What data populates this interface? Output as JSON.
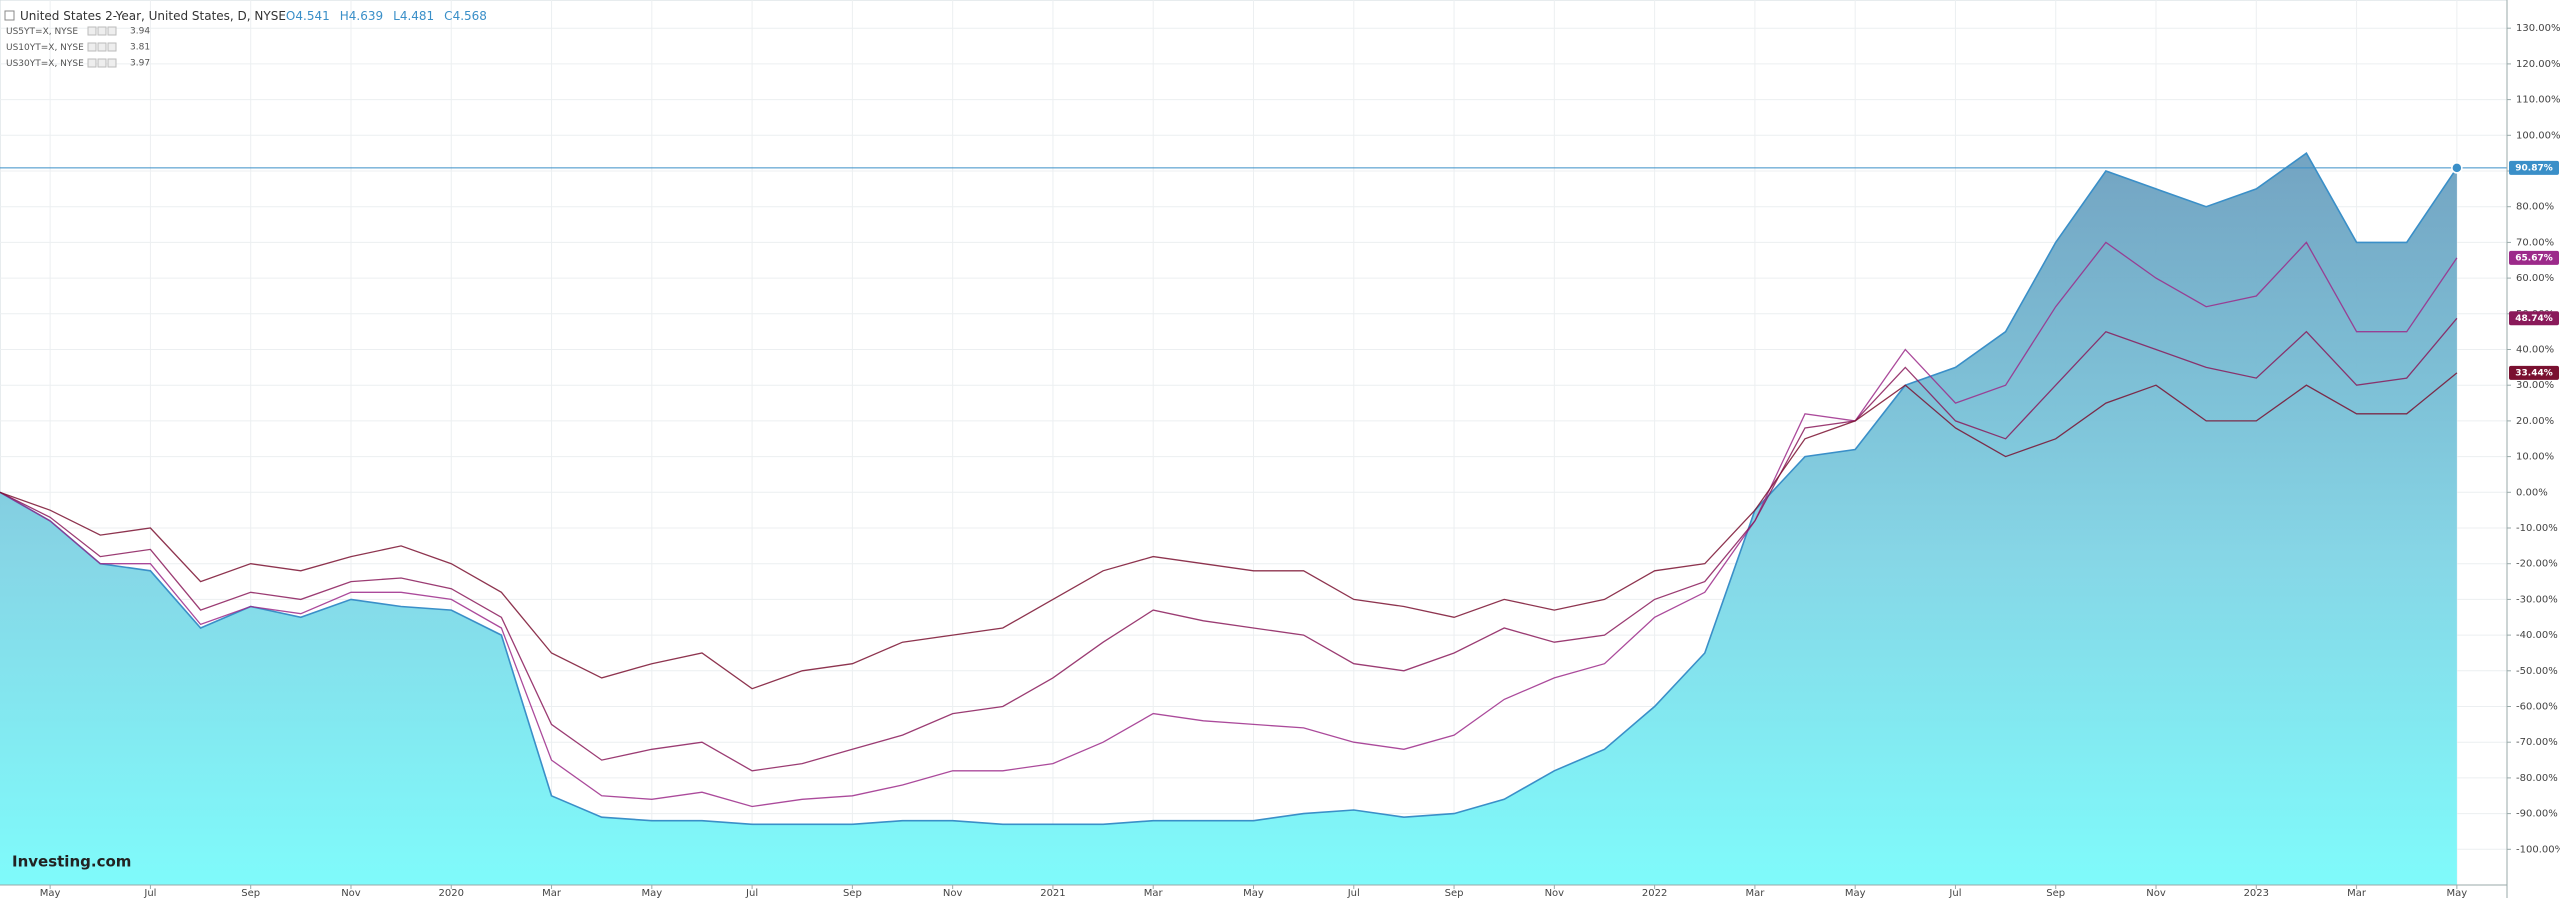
{
  "chart_data": {
    "type": "line",
    "x": [
      "2019-04",
      "2019-05",
      "2019-06",
      "2019-07",
      "2019-08",
      "2019-09",
      "2019-10",
      "2019-11",
      "2019-12",
      "2020-01",
      "2020-02",
      "2020-03",
      "2020-04",
      "2020-05",
      "2020-06",
      "2020-07",
      "2020-08",
      "2020-09",
      "2020-10",
      "2020-11",
      "2020-12",
      "2021-01",
      "2021-02",
      "2021-03",
      "2021-04",
      "2021-05",
      "2021-06",
      "2021-07",
      "2021-08",
      "2021-09",
      "2021-10",
      "2021-11",
      "2021-12",
      "2022-01",
      "2022-02",
      "2022-03",
      "2022-04",
      "2022-05",
      "2022-06",
      "2022-07",
      "2022-08",
      "2022-09",
      "2022-10",
      "2022-11",
      "2022-12",
      "2023-01",
      "2023-02",
      "2023-03",
      "2023-04",
      "2023-05"
    ],
    "series": [
      {
        "name": "United States 2-Year, United States, D, NYSE",
        "color": "#3a8fc8",
        "area": true,
        "ohlc": [
          {
            "name": "O",
            "value": 4.541
          },
          {
            "name": "H",
            "value": 4.639
          },
          {
            "name": "L",
            "value": 4.481
          },
          {
            "name": "C",
            "value": 4.568
          }
        ],
        "last_label": "90.87%",
        "values": [
          0,
          -8,
          -20,
          -22,
          -38,
          -32,
          -35,
          -30,
          -32,
          -33,
          -40,
          -85,
          -91,
          -92,
          -92,
          -93,
          -93,
          -93,
          -92,
          -92,
          -93,
          -93,
          -93,
          -92,
          -92,
          -92,
          -90,
          -89,
          -91,
          -90,
          -86,
          -78,
          -72,
          -60,
          -45,
          -5,
          10,
          12,
          30,
          35,
          45,
          70,
          90,
          85,
          80,
          85,
          95,
          70,
          70,
          90.87
        ]
      },
      {
        "name": "US5YT=X, NYSE",
        "color": "#9c2a8a",
        "legend_value": 3.94,
        "last_label": "65.67%",
        "values": [
          0,
          -8,
          -20,
          -20,
          -37,
          -32,
          -34,
          -28,
          -28,
          -30,
          -38,
          -75,
          -85,
          -86,
          -84,
          -88,
          -86,
          -85,
          -82,
          -78,
          -78,
          -76,
          -70,
          -62,
          -64,
          -65,
          -66,
          -70,
          -72,
          -68,
          -58,
          -52,
          -48,
          -35,
          -28,
          -8,
          22,
          20,
          40,
          25,
          30,
          52,
          70,
          60,
          52,
          55,
          70,
          45,
          45,
          65.67
        ]
      },
      {
        "name": "US10YT=X, NYSE",
        "color": "#8a1a5a",
        "legend_value": 3.81,
        "last_label": "48.74%",
        "values": [
          0,
          -7,
          -18,
          -16,
          -33,
          -28,
          -30,
          -25,
          -24,
          -27,
          -35,
          -65,
          -75,
          -72,
          -70,
          -78,
          -76,
          -72,
          -68,
          -62,
          -60,
          -52,
          -42,
          -33,
          -36,
          -38,
          -40,
          -48,
          -50,
          -45,
          -38,
          -42,
          -40,
          -30,
          -25,
          -8,
          18,
          20,
          35,
          20,
          15,
          30,
          45,
          40,
          35,
          32,
          45,
          30,
          32,
          48.74
        ]
      },
      {
        "name": "US30YT=X, NYSE",
        "color": "#7a1030",
        "legend_value": 3.97,
        "last_label": "33.44%",
        "values": [
          0,
          -5,
          -12,
          -10,
          -25,
          -20,
          -22,
          -18,
          -15,
          -20,
          -28,
          -45,
          -52,
          -48,
          -45,
          -55,
          -50,
          -48,
          -42,
          -40,
          -38,
          -30,
          -22,
          -18,
          -20,
          -22,
          -22,
          -30,
          -32,
          -35,
          -30,
          -33,
          -30,
          -22,
          -20,
          -5,
          15,
          20,
          30,
          18,
          10,
          15,
          25,
          30,
          20,
          20,
          30,
          22,
          22,
          33.44
        ]
      }
    ],
    "xlim": [
      "2019-04",
      "2023-06"
    ],
    "xticks": [
      {
        "value": "2019-05",
        "label": "May"
      },
      {
        "value": "2019-07",
        "label": "Jul"
      },
      {
        "value": "2019-09",
        "label": "Sep"
      },
      {
        "value": "2019-11",
        "label": "Nov"
      },
      {
        "value": "2020-01",
        "label": "2020"
      },
      {
        "value": "2020-03",
        "label": "Mar"
      },
      {
        "value": "2020-05",
        "label": "May"
      },
      {
        "value": "2020-07",
        "label": "Jul"
      },
      {
        "value": "2020-09",
        "label": "Sep"
      },
      {
        "value": "2020-11",
        "label": "Nov"
      },
      {
        "value": "2021-01",
        "label": "2021"
      },
      {
        "value": "2021-03",
        "label": "Mar"
      },
      {
        "value": "2021-05",
        "label": "May"
      },
      {
        "value": "2021-07",
        "label": "Jul"
      },
      {
        "value": "2021-09",
        "label": "Sep"
      },
      {
        "value": "2021-11",
        "label": "Nov"
      },
      {
        "value": "2022-01",
        "label": "2022"
      },
      {
        "value": "2022-03",
        "label": "Mar"
      },
      {
        "value": "2022-05",
        "label": "May"
      },
      {
        "value": "2022-07",
        "label": "Jul"
      },
      {
        "value": "2022-09",
        "label": "Sep"
      },
      {
        "value": "2022-11",
        "label": "Nov"
      },
      {
        "value": "2023-01",
        "label": "2023"
      },
      {
        "value": "2023-03",
        "label": "Mar"
      },
      {
        "value": "2023-05",
        "label": "May"
      }
    ],
    "ylim": [
      -110,
      137.9
    ],
    "yticks": [
      {
        "value": 130,
        "label": "130.00%"
      },
      {
        "value": 120,
        "label": "120.00%"
      },
      {
        "value": 110,
        "label": "110.00%"
      },
      {
        "value": 100,
        "label": "100.00%"
      },
      {
        "value": 90,
        "label": "90.00%"
      },
      {
        "value": 80,
        "label": "80.00%"
      },
      {
        "value": 70,
        "label": "70.00%"
      },
      {
        "value": 60,
        "label": "60.00%"
      },
      {
        "value": 50,
        "label": "50.00%"
      },
      {
        "value": 40,
        "label": "40.00%"
      },
      {
        "value": 30,
        "label": "30.00%"
      },
      {
        "value": 20,
        "label": "20.00%"
      },
      {
        "value": 10,
        "label": "10.00%"
      },
      {
        "value": 0,
        "label": "0.00%"
      },
      {
        "value": -10,
        "label": "-10.00%"
      },
      {
        "value": -20,
        "label": "-20.00%"
      },
      {
        "value": -30,
        "label": "-30.00%"
      },
      {
        "value": -40,
        "label": "-40.00%"
      },
      {
        "value": -50,
        "label": "-50.00%"
      },
      {
        "value": -60,
        "label": "-60.00%"
      },
      {
        "value": -70,
        "label": "-70.00%"
      },
      {
        "value": -80,
        "label": "-80.00%"
      },
      {
        "value": -90,
        "label": "-90.00%"
      },
      {
        "value": -100,
        "label": "-100.00%"
      }
    ],
    "grid": true,
    "watermark": "Investing.com"
  }
}
